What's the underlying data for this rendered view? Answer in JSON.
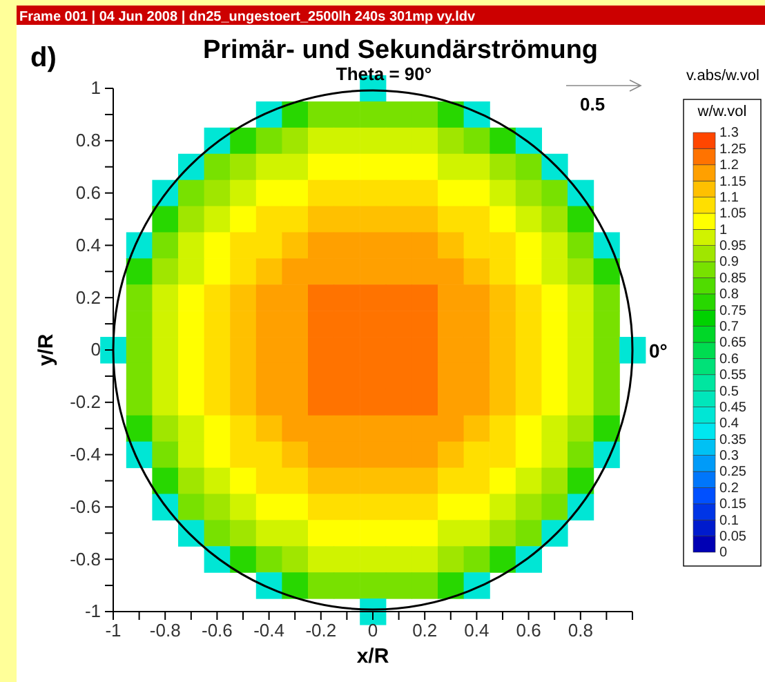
{
  "chart_data": {
    "type": "heatmap",
    "title": "Primär- und Sekundärströmung",
    "subtitle": "Theta = 90°",
    "xlabel": "x/R",
    "ylabel": "y/R",
    "clabel": "w/w.vol",
    "annotations": [
      "Frame 001 | 04 Jun 2008 | dn25_ungestoert_2500lh 240s 301mp vy.ldv",
      "d)",
      "v.abs/w.vol",
      "0.5",
      "0°"
    ],
    "categories": [
      "-1",
      null,
      "-0.8",
      null,
      "-0.6",
      null,
      "-0.4",
      null,
      "-0.2",
      null,
      "0",
      null,
      "0.2",
      null,
      "0.4",
      null,
      "0.6",
      null,
      "0.8",
      null,
      null
    ],
    "y_categories": [
      "1",
      null,
      "0.8",
      null,
      "0.6",
      null,
      "0.4",
      null,
      "0.2",
      null,
      "0",
      null,
      "-0.2",
      null,
      "-0.4",
      null,
      "-0.6",
      null,
      "-0.8",
      null,
      "-1"
    ],
    "cells": [
      [
        null,
        null,
        null,
        null,
        null,
        null,
        null,
        null,
        null,
        null,
        0.4,
        null,
        null,
        null,
        null,
        null,
        null,
        null,
        null,
        null,
        null
      ],
      [
        null,
        null,
        null,
        null,
        null,
        null,
        0.4,
        0.75,
        0.85,
        0.85,
        0.85,
        0.85,
        0.85,
        0.75,
        0.4,
        null,
        null,
        null,
        null,
        null,
        null
      ],
      [
        null,
        null,
        null,
        null,
        0.4,
        0.75,
        0.85,
        0.92,
        0.97,
        0.97,
        0.97,
        0.97,
        0.97,
        0.92,
        0.85,
        0.75,
        0.4,
        null,
        null,
        null,
        null
      ],
      [
        null,
        null,
        null,
        0.4,
        0.85,
        0.92,
        0.97,
        0.97,
        1.02,
        1.02,
        1.02,
        1.02,
        1.02,
        0.97,
        0.97,
        0.92,
        0.85,
        0.4,
        null,
        null,
        null
      ],
      [
        null,
        null,
        0.4,
        0.85,
        0.92,
        0.97,
        1.02,
        1.02,
        1.07,
        1.07,
        1.07,
        1.07,
        1.07,
        1.02,
        1.02,
        0.97,
        0.92,
        0.85,
        0.4,
        null,
        null
      ],
      [
        null,
        null,
        0.75,
        0.92,
        0.97,
        1.02,
        1.07,
        1.07,
        1.12,
        1.12,
        1.12,
        1.12,
        1.12,
        1.07,
        1.07,
        1.02,
        0.97,
        0.92,
        0.75,
        null,
        null
      ],
      [
        null,
        0.4,
        0.85,
        0.97,
        1.02,
        1.07,
        1.07,
        1.12,
        1.17,
        1.17,
        1.17,
        1.17,
        1.17,
        1.12,
        1.07,
        1.07,
        1.02,
        0.97,
        0.85,
        0.4,
        null
      ],
      [
        null,
        0.75,
        0.92,
        0.97,
        1.02,
        1.07,
        1.12,
        1.17,
        1.17,
        1.17,
        1.17,
        1.17,
        1.17,
        1.17,
        1.12,
        1.07,
        1.02,
        0.97,
        0.92,
        0.75,
        null
      ],
      [
        null,
        0.85,
        0.97,
        1.02,
        1.07,
        1.12,
        1.17,
        1.17,
        1.22,
        1.22,
        1.22,
        1.22,
        1.22,
        1.17,
        1.17,
        1.12,
        1.07,
        1.02,
        0.97,
        0.85,
        null
      ],
      [
        null,
        0.85,
        0.97,
        1.02,
        1.07,
        1.12,
        1.17,
        1.17,
        1.22,
        1.22,
        1.22,
        1.22,
        1.22,
        1.17,
        1.17,
        1.12,
        1.07,
        1.02,
        0.97,
        0.85,
        null
      ],
      [
        0.4,
        0.85,
        0.97,
        1.02,
        1.07,
        1.12,
        1.17,
        1.17,
        1.22,
        1.22,
        1.22,
        1.22,
        1.22,
        1.17,
        1.17,
        1.12,
        1.07,
        1.02,
        0.97,
        0.85,
        0.4
      ],
      [
        null,
        0.85,
        0.97,
        1.02,
        1.07,
        1.12,
        1.17,
        1.17,
        1.22,
        1.22,
        1.22,
        1.22,
        1.22,
        1.17,
        1.17,
        1.12,
        1.07,
        1.02,
        0.97,
        0.85,
        null
      ],
      [
        null,
        0.85,
        0.97,
        1.02,
        1.07,
        1.12,
        1.17,
        1.17,
        1.22,
        1.22,
        1.22,
        1.22,
        1.22,
        1.17,
        1.17,
        1.12,
        1.07,
        1.02,
        0.97,
        0.85,
        null
      ],
      [
        null,
        0.75,
        0.92,
        0.97,
        1.02,
        1.07,
        1.12,
        1.17,
        1.17,
        1.17,
        1.17,
        1.17,
        1.17,
        1.17,
        1.12,
        1.07,
        1.02,
        0.97,
        0.92,
        0.75,
        null
      ],
      [
        null,
        0.4,
        0.85,
        0.97,
        1.02,
        1.07,
        1.07,
        1.12,
        1.17,
        1.17,
        1.17,
        1.17,
        1.17,
        1.12,
        1.07,
        1.07,
        1.02,
        0.97,
        0.85,
        0.4,
        null
      ],
      [
        null,
        null,
        0.75,
        0.92,
        0.97,
        1.02,
        1.07,
        1.07,
        1.12,
        1.12,
        1.12,
        1.12,
        1.12,
        1.07,
        1.07,
        1.02,
        0.97,
        0.92,
        0.75,
        null,
        null
      ],
      [
        null,
        null,
        0.4,
        0.85,
        0.92,
        0.97,
        1.02,
        1.02,
        1.07,
        1.07,
        1.07,
        1.07,
        1.07,
        1.02,
        1.02,
        0.97,
        0.92,
        0.85,
        0.4,
        null,
        null
      ],
      [
        null,
        null,
        null,
        0.4,
        0.85,
        0.92,
        0.97,
        0.97,
        1.02,
        1.02,
        1.02,
        1.02,
        1.02,
        0.97,
        0.97,
        0.92,
        0.85,
        0.4,
        null,
        null,
        null
      ],
      [
        null,
        null,
        null,
        null,
        0.4,
        0.75,
        0.85,
        0.92,
        0.97,
        0.97,
        0.97,
        0.97,
        0.97,
        0.92,
        0.85,
        0.75,
        0.4,
        null,
        null,
        null,
        null
      ],
      [
        null,
        null,
        null,
        null,
        null,
        null,
        0.4,
        0.75,
        0.85,
        0.85,
        0.85,
        0.85,
        0.85,
        0.75,
        0.4,
        null,
        null,
        null,
        null,
        null,
        null
      ],
      [
        null,
        null,
        null,
        null,
        null,
        null,
        null,
        null,
        null,
        null,
        0.4,
        null,
        null,
        null,
        null,
        null,
        null,
        null,
        null,
        null,
        null
      ]
    ],
    "clim": [
      0,
      1.3
    ],
    "cticks": [
      0,
      0.05,
      0.1,
      0.15,
      0.2,
      0.25,
      0.3,
      0.35,
      0.4,
      0.45,
      0.5,
      0.55,
      0.6,
      0.65,
      0.7,
      0.75,
      0.8,
      0.85,
      0.9,
      0.95,
      1,
      1.05,
      1.1,
      1.15,
      1.2,
      1.25,
      1.3
    ]
  }
}
